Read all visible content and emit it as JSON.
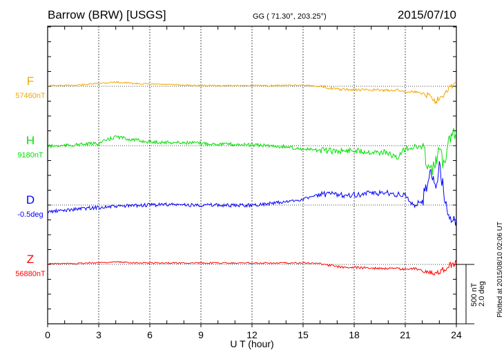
{
  "chart_data": {
    "type": "line",
    "title": "Barrow (BRW)  [USGS]",
    "coords": "GG ( 71.30°, 203.25°)",
    "date": "2015/07/10",
    "xlabel": "U T (hour)",
    "xlim": [
      0,
      24
    ],
    "xticks": [
      "0",
      "3",
      "6",
      "9",
      "12",
      "15",
      "18",
      "21",
      "24"
    ],
    "scale_labels": [
      "500 nT",
      "2.0 deg"
    ],
    "plotted_note": "Plotted at 2015/08/10 02:06 UT",
    "x": [
      0,
      1,
      2,
      3,
      4,
      5,
      6,
      7,
      8,
      9,
      10,
      11,
      12,
      13,
      14,
      15,
      16,
      17,
      18,
      19,
      20,
      20.5,
      21,
      21.5,
      22,
      22.5,
      22.8,
      23,
      23.3,
      23.5,
      23.8,
      24
    ],
    "series": [
      {
        "name": "F",
        "baseline_label": "57460nT",
        "unit": "nT",
        "color": "#f0a800",
        "values": [
          6,
          6,
          12,
          25,
          35,
          25,
          18,
          15,
          10,
          6,
          6,
          6,
          6,
          6,
          8,
          10,
          0,
          -25,
          -30,
          -30,
          -35,
          -30,
          -45,
          -45,
          -60,
          -80,
          -130,
          -90,
          -60,
          -20,
          10,
          40
        ]
      },
      {
        "name": "H",
        "baseline_label": "9180nT",
        "unit": "nT",
        "color": "#00e000",
        "values": [
          -5,
          0,
          10,
          20,
          75,
          50,
          30,
          28,
          25,
          20,
          15,
          10,
          5,
          0,
          -10,
          -30,
          -40,
          -45,
          -40,
          -50,
          -60,
          -110,
          -20,
          -15,
          -10,
          -225,
          -150,
          -20,
          -180,
          60,
          120,
          100
        ]
      },
      {
        "name": "D",
        "baseline_label": "-0.5deg",
        "unit": "deg",
        "color": "#0000ff",
        "values": [
          -0.23,
          -0.18,
          -0.12,
          -0.08,
          -0.05,
          -0.02,
          0.0,
          0.02,
          0.0,
          0.0,
          0.0,
          -0.02,
          0.0,
          0.05,
          0.1,
          0.2,
          0.35,
          0.35,
          0.35,
          0.38,
          0.42,
          0.35,
          0.3,
          0.0,
          0.1,
          1.2,
          0.6,
          1.33,
          0.3,
          -0.2,
          -0.6,
          -0.5
        ]
      },
      {
        "name": "Z",
        "baseline_label": "56880nT",
        "unit": "nT",
        "color": "#ff0000",
        "values": [
          5,
          6,
          10,
          15,
          20,
          15,
          12,
          12,
          12,
          12,
          12,
          12,
          12,
          12,
          12,
          12,
          10,
          -20,
          -25,
          -30,
          -35,
          -35,
          -40,
          -35,
          -50,
          -60,
          -85,
          -55,
          -45,
          -20,
          5,
          10
        ]
      }
    ]
  }
}
